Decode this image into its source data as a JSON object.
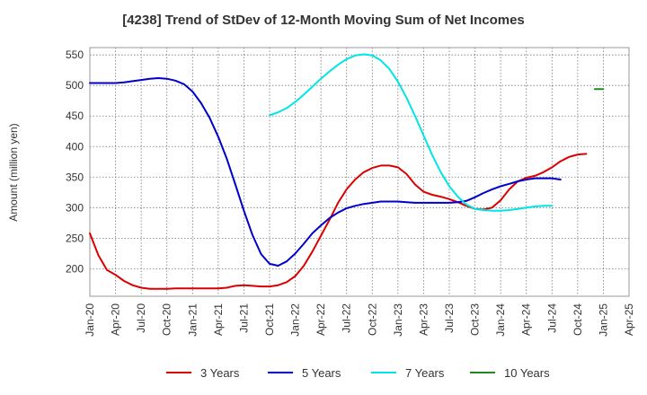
{
  "chart_data": {
    "type": "line",
    "title": "[4238]  Trend of StDev of 12-Month Moving Sum of Net Incomes",
    "ylabel": "Amount (million yen)",
    "xlabel": "",
    "ylim": [
      155,
      562
    ],
    "xlim": [
      "2020-01",
      "2025-04"
    ],
    "yticks": [
      200,
      250,
      300,
      350,
      400,
      450,
      500,
      550
    ],
    "xticks": [
      "Jan-20",
      "Apr-20",
      "Jul-20",
      "Oct-20",
      "Jan-21",
      "Apr-21",
      "Jul-21",
      "Oct-21",
      "Jan-22",
      "Apr-22",
      "Jul-22",
      "Oct-22",
      "Jan-23",
      "Apr-23",
      "Jul-23",
      "Oct-23",
      "Jan-24",
      "Apr-24",
      "Jul-24",
      "Oct-24",
      "Jan-25",
      "Apr-25"
    ],
    "grid": true,
    "legend_position": "bottom",
    "series": [
      {
        "name": "3 Years",
        "color": "#dd0000",
        "points": [
          [
            "2020-01",
            258
          ],
          [
            "2020-02",
            222
          ],
          [
            "2020-03",
            198
          ],
          [
            "2020-04",
            190
          ],
          [
            "2020-05",
            180
          ],
          [
            "2020-06",
            173
          ],
          [
            "2020-07",
            169
          ],
          [
            "2020-08",
            167
          ],
          [
            "2020-09",
            167
          ],
          [
            "2020-10",
            167
          ],
          [
            "2020-11",
            168
          ],
          [
            "2020-12",
            168
          ],
          [
            "2021-01",
            168
          ],
          [
            "2021-02",
            168
          ],
          [
            "2021-03",
            168
          ],
          [
            "2021-04",
            168
          ],
          [
            "2021-05",
            169
          ],
          [
            "2021-06",
            172
          ],
          [
            "2021-07",
            173
          ],
          [
            "2021-08",
            172
          ],
          [
            "2021-09",
            171
          ],
          [
            "2021-10",
            171
          ],
          [
            "2021-11",
            173
          ],
          [
            "2021-12",
            178
          ],
          [
            "2022-01",
            188
          ],
          [
            "2022-02",
            205
          ],
          [
            "2022-03",
            228
          ],
          [
            "2022-04",
            254
          ],
          [
            "2022-05",
            280
          ],
          [
            "2022-06",
            308
          ],
          [
            "2022-07",
            330
          ],
          [
            "2022-08",
            346
          ],
          [
            "2022-09",
            358
          ],
          [
            "2022-10",
            365
          ],
          [
            "2022-11",
            369
          ],
          [
            "2022-12",
            369
          ],
          [
            "2023-01",
            366
          ],
          [
            "2023-02",
            355
          ],
          [
            "2023-03",
            338
          ],
          [
            "2023-04",
            326
          ],
          [
            "2023-05",
            321
          ],
          [
            "2023-06",
            318
          ],
          [
            "2023-07",
            314
          ],
          [
            "2023-08",
            309
          ],
          [
            "2023-09",
            303
          ],
          [
            "2023-10",
            298
          ],
          [
            "2023-11",
            297
          ],
          [
            "2023-12",
            300
          ],
          [
            "2024-01",
            312
          ],
          [
            "2024-02",
            330
          ],
          [
            "2024-03",
            343
          ],
          [
            "2024-04",
            349
          ],
          [
            "2024-05",
            352
          ],
          [
            "2024-06",
            358
          ],
          [
            "2024-07",
            366
          ],
          [
            "2024-08",
            376
          ],
          [
            "2024-09",
            383
          ],
          [
            "2024-10",
            387
          ],
          [
            "2024-11",
            388
          ]
        ]
      },
      {
        "name": "5 Years",
        "color": "#0000cc",
        "points": [
          [
            "2020-01",
            504
          ],
          [
            "2020-02",
            504
          ],
          [
            "2020-03",
            504
          ],
          [
            "2020-04",
            504
          ],
          [
            "2020-05",
            505
          ],
          [
            "2020-06",
            507
          ],
          [
            "2020-07",
            509
          ],
          [
            "2020-08",
            511
          ],
          [
            "2020-09",
            512
          ],
          [
            "2020-10",
            511
          ],
          [
            "2020-11",
            508
          ],
          [
            "2020-12",
            502
          ],
          [
            "2021-01",
            490
          ],
          [
            "2021-02",
            471
          ],
          [
            "2021-03",
            447
          ],
          [
            "2021-04",
            416
          ],
          [
            "2021-05",
            380
          ],
          [
            "2021-06",
            338
          ],
          [
            "2021-07",
            295
          ],
          [
            "2021-08",
            255
          ],
          [
            "2021-09",
            224
          ],
          [
            "2021-10",
            208
          ],
          [
            "2021-11",
            205
          ],
          [
            "2021-12",
            212
          ],
          [
            "2022-01",
            225
          ],
          [
            "2022-02",
            241
          ],
          [
            "2022-03",
            258
          ],
          [
            "2022-04",
            271
          ],
          [
            "2022-05",
            283
          ],
          [
            "2022-06",
            292
          ],
          [
            "2022-07",
            299
          ],
          [
            "2022-08",
            303
          ],
          [
            "2022-09",
            306
          ],
          [
            "2022-10",
            308
          ],
          [
            "2022-11",
            310
          ],
          [
            "2022-12",
            310
          ],
          [
            "2023-01",
            310
          ],
          [
            "2023-02",
            309
          ],
          [
            "2023-03",
            308
          ],
          [
            "2023-04",
            308
          ],
          [
            "2023-05",
            308
          ],
          [
            "2023-06",
            308
          ],
          [
            "2023-07",
            308
          ],
          [
            "2023-08",
            309
          ],
          [
            "2023-09",
            311
          ],
          [
            "2023-10",
            317
          ],
          [
            "2023-11",
            324
          ],
          [
            "2023-12",
            330
          ],
          [
            "2024-01",
            335
          ],
          [
            "2024-02",
            339
          ],
          [
            "2024-03",
            343
          ],
          [
            "2024-04",
            346
          ],
          [
            "2024-05",
            348
          ],
          [
            "2024-06",
            348
          ],
          [
            "2024-07",
            348
          ],
          [
            "2024-08",
            346
          ]
        ]
      },
      {
        "name": "7 Years",
        "color": "#00e5e5",
        "points": [
          [
            "2021-10",
            451
          ],
          [
            "2021-11",
            456
          ],
          [
            "2021-12",
            463
          ],
          [
            "2022-01",
            473
          ],
          [
            "2022-02",
            485
          ],
          [
            "2022-03",
            498
          ],
          [
            "2022-04",
            511
          ],
          [
            "2022-05",
            523
          ],
          [
            "2022-06",
            534
          ],
          [
            "2022-07",
            543
          ],
          [
            "2022-08",
            549
          ],
          [
            "2022-09",
            551
          ],
          [
            "2022-10",
            549
          ],
          [
            "2022-11",
            541
          ],
          [
            "2022-12",
            527
          ],
          [
            "2023-01",
            506
          ],
          [
            "2023-02",
            480
          ],
          [
            "2023-03",
            450
          ],
          [
            "2023-04",
            418
          ],
          [
            "2023-05",
            386
          ],
          [
            "2023-06",
            358
          ],
          [
            "2023-07",
            335
          ],
          [
            "2023-08",
            318
          ],
          [
            "2023-09",
            305
          ],
          [
            "2023-10",
            298
          ],
          [
            "2023-11",
            296
          ],
          [
            "2023-12",
            295
          ],
          [
            "2024-01",
            295
          ],
          [
            "2024-02",
            296
          ],
          [
            "2024-03",
            298
          ],
          [
            "2024-04",
            300
          ],
          [
            "2024-05",
            302
          ],
          [
            "2024-06",
            303
          ],
          [
            "2024-07",
            303
          ]
        ]
      },
      {
        "name": "10 Years",
        "color": "#228822",
        "points": [
          [
            "2024-12",
            494
          ],
          [
            "2025-01",
            494
          ]
        ]
      }
    ]
  }
}
